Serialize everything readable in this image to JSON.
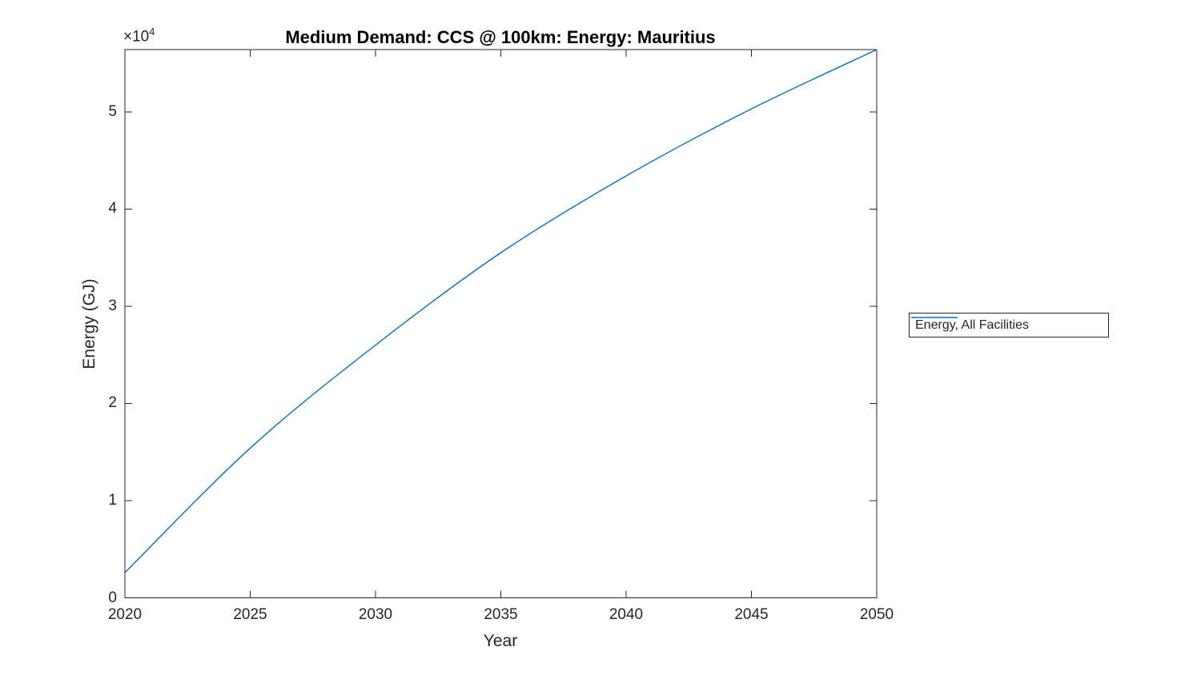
{
  "figure": {
    "background": "#ffffff",
    "axis_color": "#262626",
    "title_color": "#000000"
  },
  "chart_data": {
    "type": "line",
    "title": "Medium Demand: CCS @ 100km: Energy: Mauritius",
    "xlabel": "Year",
    "ylabel": "Energy (GJ)",
    "y_axis_multiplier": "×10",
    "y_axis_exponent": "4",
    "xlim": [
      2020,
      2050
    ],
    "ylim": [
      0,
      56400
    ],
    "xticks": [
      2020,
      2025,
      2030,
      2035,
      2040,
      2045,
      2050
    ],
    "yticks": [
      {
        "value": 0,
        "label": "0"
      },
      {
        "value": 10000,
        "label": "1"
      },
      {
        "value": 20000,
        "label": "2"
      },
      {
        "value": 30000,
        "label": "3"
      },
      {
        "value": 40000,
        "label": "4"
      },
      {
        "value": 50000,
        "label": "5"
      }
    ],
    "grid": false,
    "legend_position": "right-outside",
    "series": [
      {
        "name": "Energy, All Facilities",
        "color": "#0072BD",
        "x": [
          2020,
          2025,
          2030,
          2035,
          2040,
          2045,
          2050
        ],
        "y": [
          2600,
          15400,
          26000,
          35500,
          43400,
          50300,
          56400
        ]
      }
    ]
  }
}
